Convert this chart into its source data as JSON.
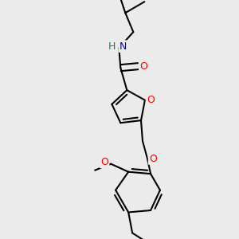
{
  "bg_color": "#ebebeb",
  "bond_color": "#000000",
  "bond_width": 1.5,
  "atom_colors": {
    "O": "#ff0000",
    "N": "#0000cd",
    "H": "#008080",
    "C": "#000000"
  },
  "font_size": 9,
  "fig_size": [
    3.0,
    3.0
  ],
  "dpi": 100
}
